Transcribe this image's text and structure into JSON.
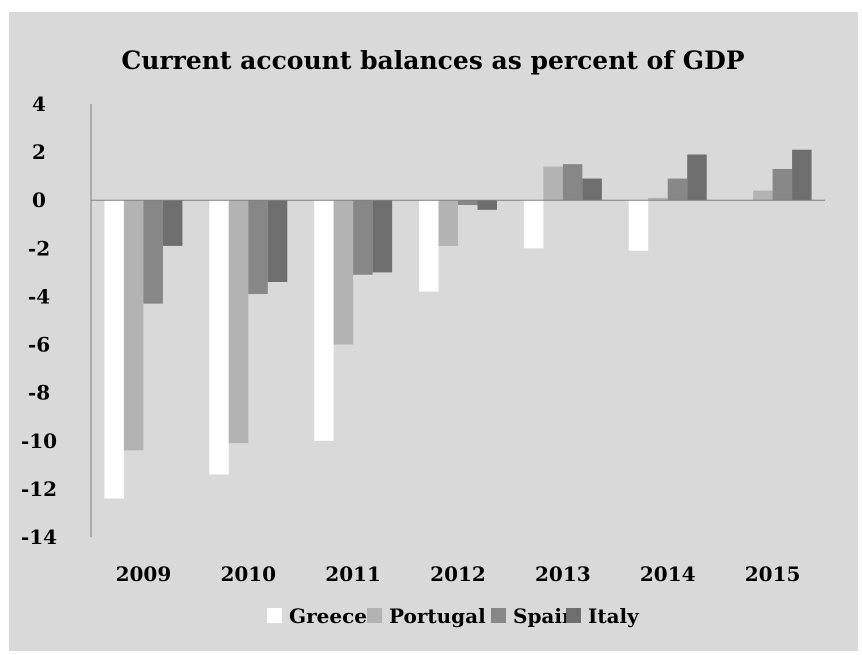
{
  "chart_data": {
    "type": "bar",
    "title": "Current account balances as percent of GDP",
    "categories": [
      "2009",
      "2010",
      "2011",
      "2012",
      "2013",
      "2014",
      "2015"
    ],
    "ylim": [
      -14,
      4
    ],
    "yticks": [
      "4",
      "2",
      "0",
      "-2",
      "-4",
      "-6",
      "-8",
      "-10",
      "-12",
      "-14"
    ],
    "ytick_values": [
      4,
      2,
      0,
      -2,
      -4,
      -6,
      -8,
      -10,
      -12,
      -14
    ],
    "grid": false,
    "legend_position": "bottom",
    "series": [
      {
        "name": "Greece",
        "color": "#ffffff",
        "values": [
          -12.4,
          -11.4,
          -10.0,
          -3.8,
          -2.0,
          -2.1,
          0.0
        ]
      },
      {
        "name": "Portugal",
        "color": "#b3b3b3",
        "values": [
          -10.4,
          -10.1,
          -6.0,
          -1.9,
          1.4,
          0.1,
          0.4
        ]
      },
      {
        "name": "Spain",
        "color": "#878787",
        "values": [
          -4.3,
          -3.9,
          -3.1,
          -0.2,
          1.5,
          0.9,
          1.3
        ]
      },
      {
        "name": "Italy",
        "color": "#6e6e6e",
        "values": [
          -1.9,
          -3.4,
          -3.0,
          -0.4,
          0.9,
          1.9,
          2.1
        ]
      }
    ]
  }
}
